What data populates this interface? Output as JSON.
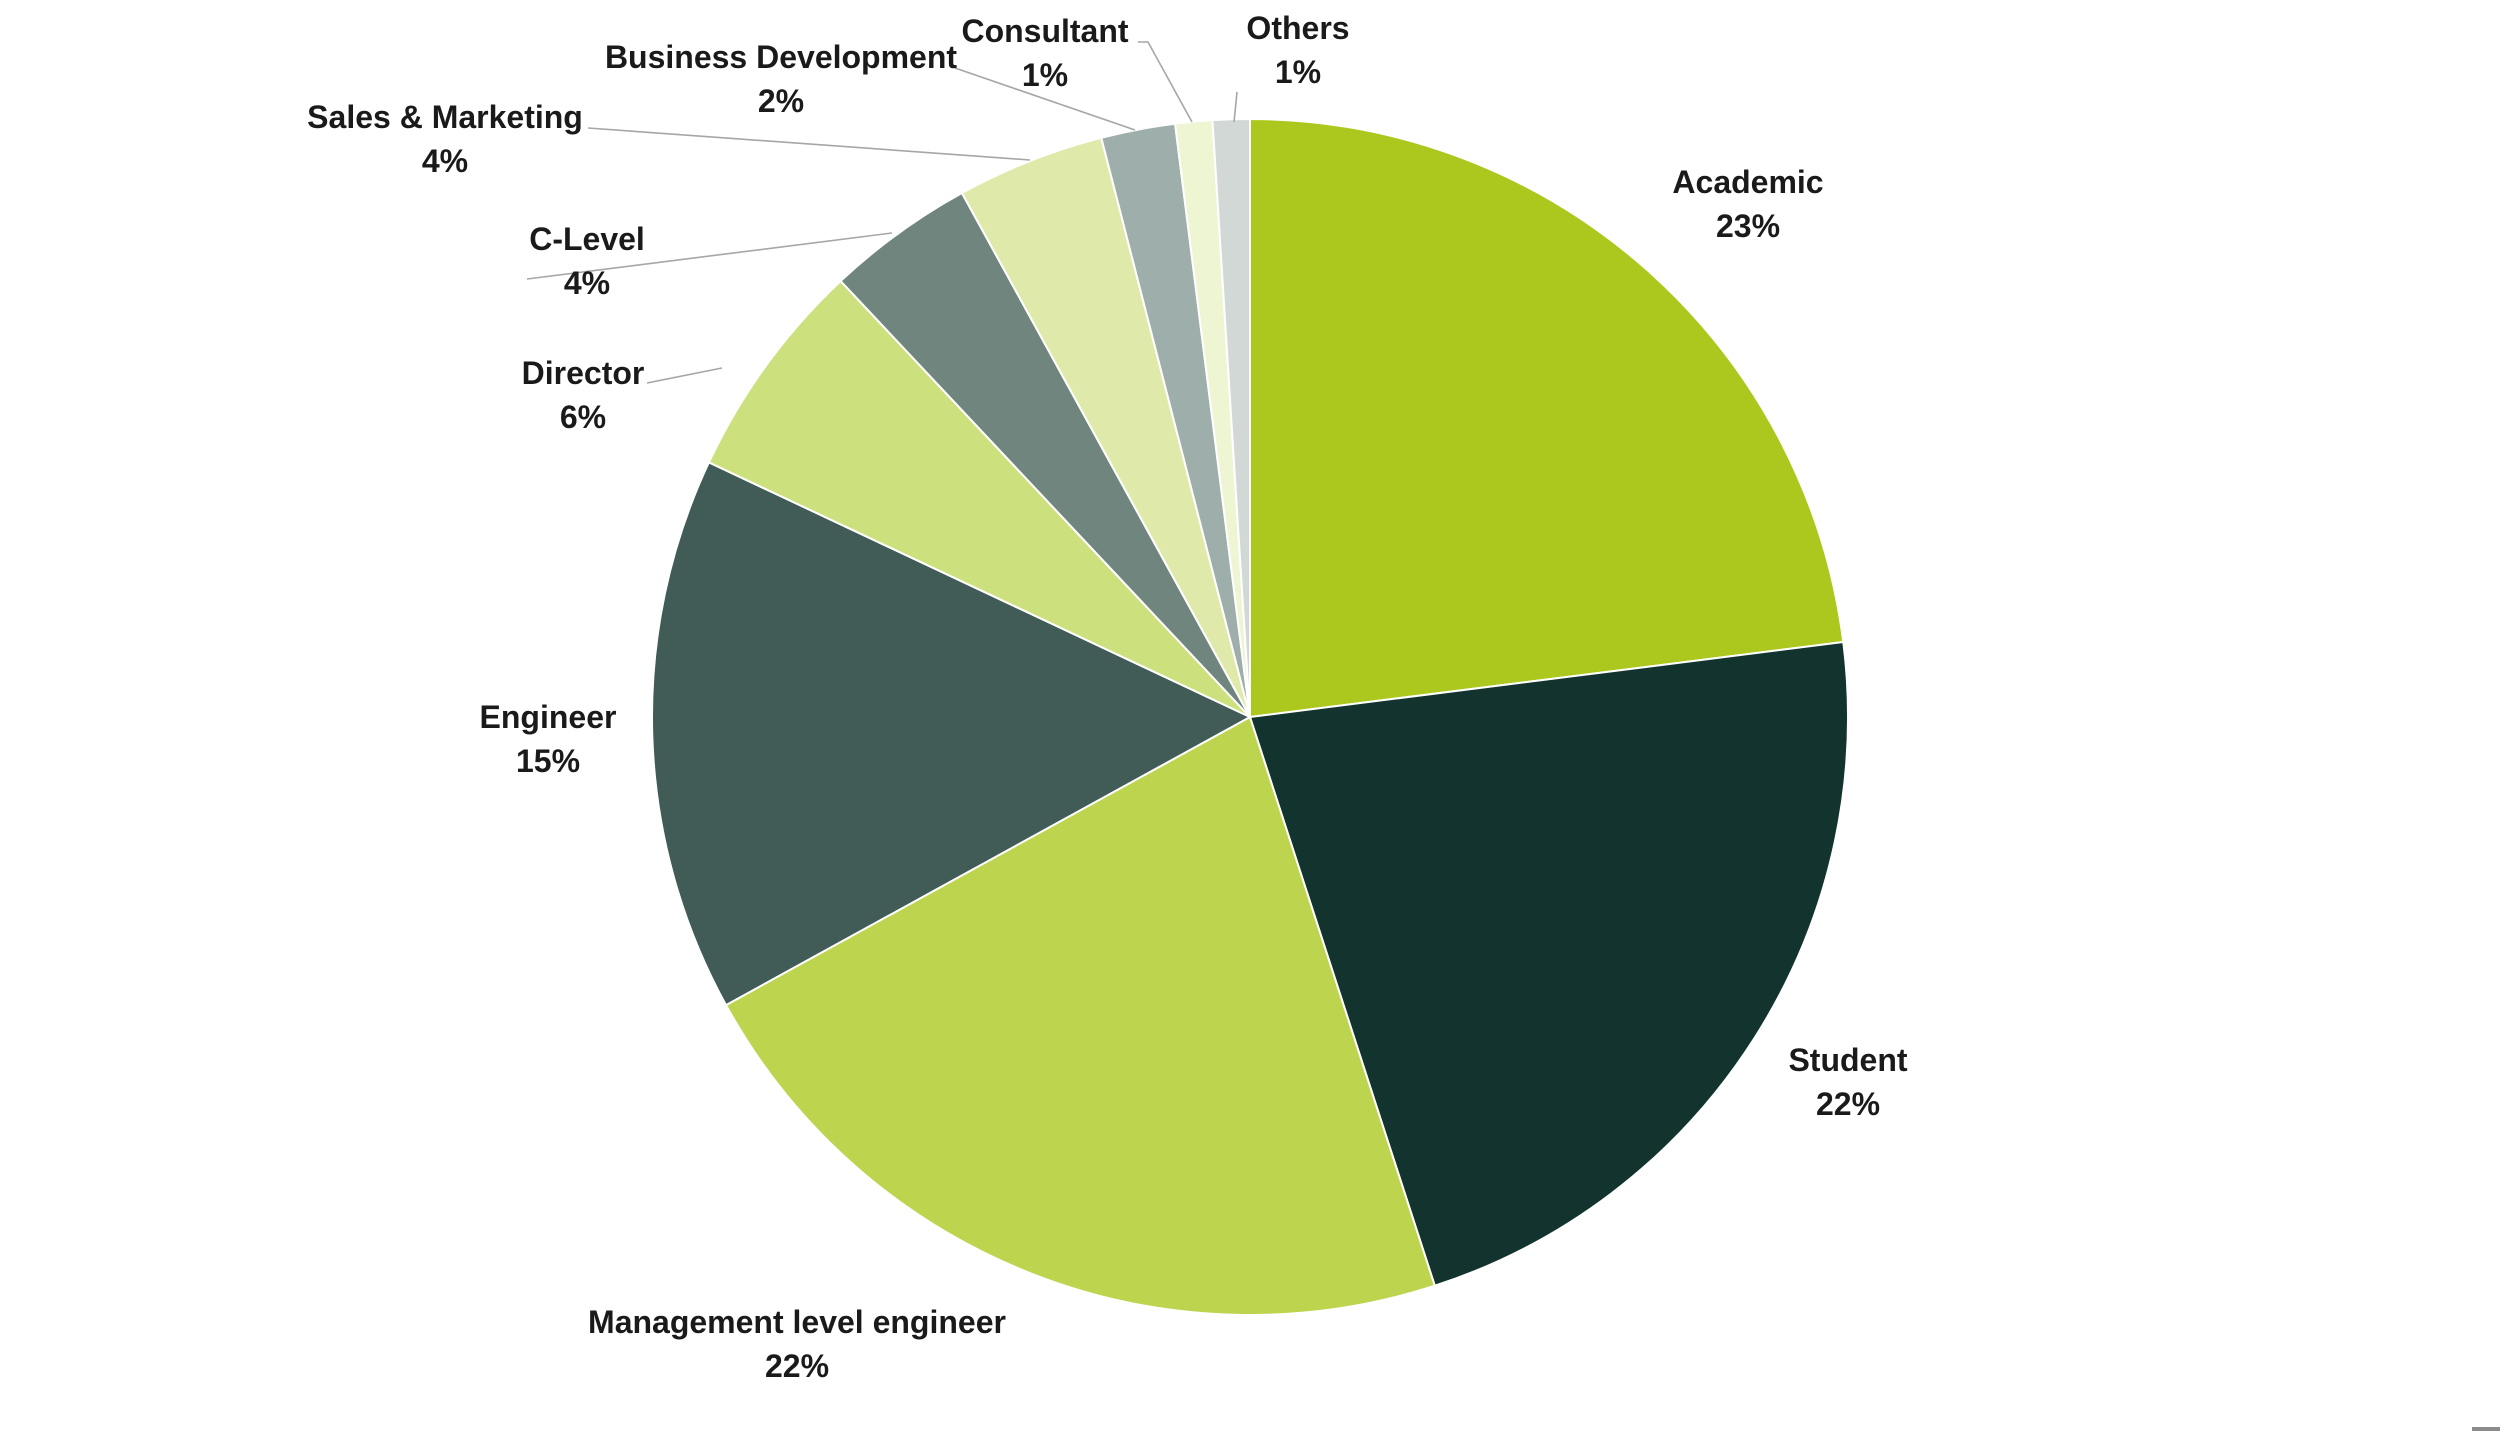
{
  "chart_data": {
    "type": "pie",
    "start": "12 o'clock",
    "direction": "clockwise",
    "slices": [
      {
        "label": "Academic",
        "value": 23,
        "display": "23%",
        "color": "#acc81e"
      },
      {
        "label": "Student",
        "value": 22,
        "display": "22%",
        "color": "#12332e"
      },
      {
        "label": "Management level engineer",
        "value": 22,
        "display": "22%",
        "color": "#bcd44e"
      },
      {
        "label": "Engineer",
        "value": 15,
        "display": "15%",
        "color": "#415b57"
      },
      {
        "label": "Director",
        "value": 6,
        "display": "6%",
        "color": "#cde07e"
      },
      {
        "label": "C-Level",
        "value": 4,
        "display": "4%",
        "color": "#6f857e"
      },
      {
        "label": "Sales & Marketing",
        "value": 4,
        "display": "4%",
        "color": "#dfeaaa"
      },
      {
        "label": "Business Development",
        "value": 2,
        "display": "2%",
        "color": "#9eaeaa"
      },
      {
        "label": "Consultant",
        "value": 1,
        "display": "1%",
        "color": "#eef5d2"
      },
      {
        "label": "Others",
        "value": 1,
        "display": "1%",
        "color": "#d1d8d6"
      }
    ]
  }
}
